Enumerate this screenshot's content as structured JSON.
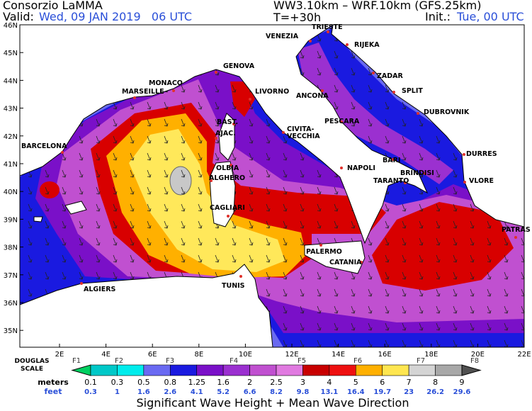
{
  "header": {
    "title": "Consorzio LaMMA",
    "valid_label": "Valid:",
    "valid": "Wed, 09 JAN 2019   06 UTC",
    "model": "WW3.10km – WRF.10km (GFS.25km)",
    "lead": "T=+30h",
    "init_label": "Init.:",
    "init": "Tue, 00 UTC"
  },
  "map": {
    "lat_labels": [
      "46N",
      "45N",
      "44N",
      "43N",
      "42N",
      "41N",
      "40N",
      "39N",
      "38N",
      "37N",
      "36N",
      "35N"
    ],
    "lon_labels": [
      "2E",
      "4E",
      "6E",
      "8E",
      "10E",
      "12E",
      "14E",
      "16E",
      "18E",
      "20E",
      "22E"
    ],
    "cities": [
      "TRIESTE",
      "VENEZIA",
      "RIJEKA",
      "ZADAR",
      "SPLIT",
      "DUBROVNIK",
      "MONACO",
      "MARSEILLE",
      "GENOVA",
      "LIVORNO",
      "ANCONA",
      "BAST.",
      "AJAC.",
      "PESCARA",
      "CIVITA-",
      "VECCHIA",
      "BARCELONA",
      "DURRES",
      "BARI",
      "OLBIA",
      "NAPOLI",
      "BRINDISI",
      "ALGHERO",
      "TARANTO",
      "VLORE",
      "CAGLIARI",
      "PATRAS",
      "PALERMO",
      "CATANIA",
      "ALGIERS",
      "TUNIS"
    ]
  },
  "legend": {
    "douglas_label": [
      "DOUGLAS",
      "SCALE"
    ],
    "douglas": [
      "F1",
      "F2",
      "F3",
      "F4",
      "F5",
      "F6",
      "F7",
      "F8"
    ],
    "meters_label": "meters",
    "meters": [
      "0.1",
      "0.3",
      "0.5",
      "0.8",
      "1.25",
      "1.6",
      "2",
      "2.5",
      "3",
      "4",
      "5",
      "6",
      "7",
      "8",
      "9"
    ],
    "feet_label": "feet",
    "feet": [
      "0.3",
      "1",
      "1.6",
      "2.6",
      "4.1",
      "5.2",
      "6.6",
      "8.2",
      "9.8",
      "13.1",
      "16.4",
      "19.7",
      "23",
      "26.2",
      "29.6"
    ],
    "caption": "Significant Wave Height + Mean Wave Direction"
  }
}
